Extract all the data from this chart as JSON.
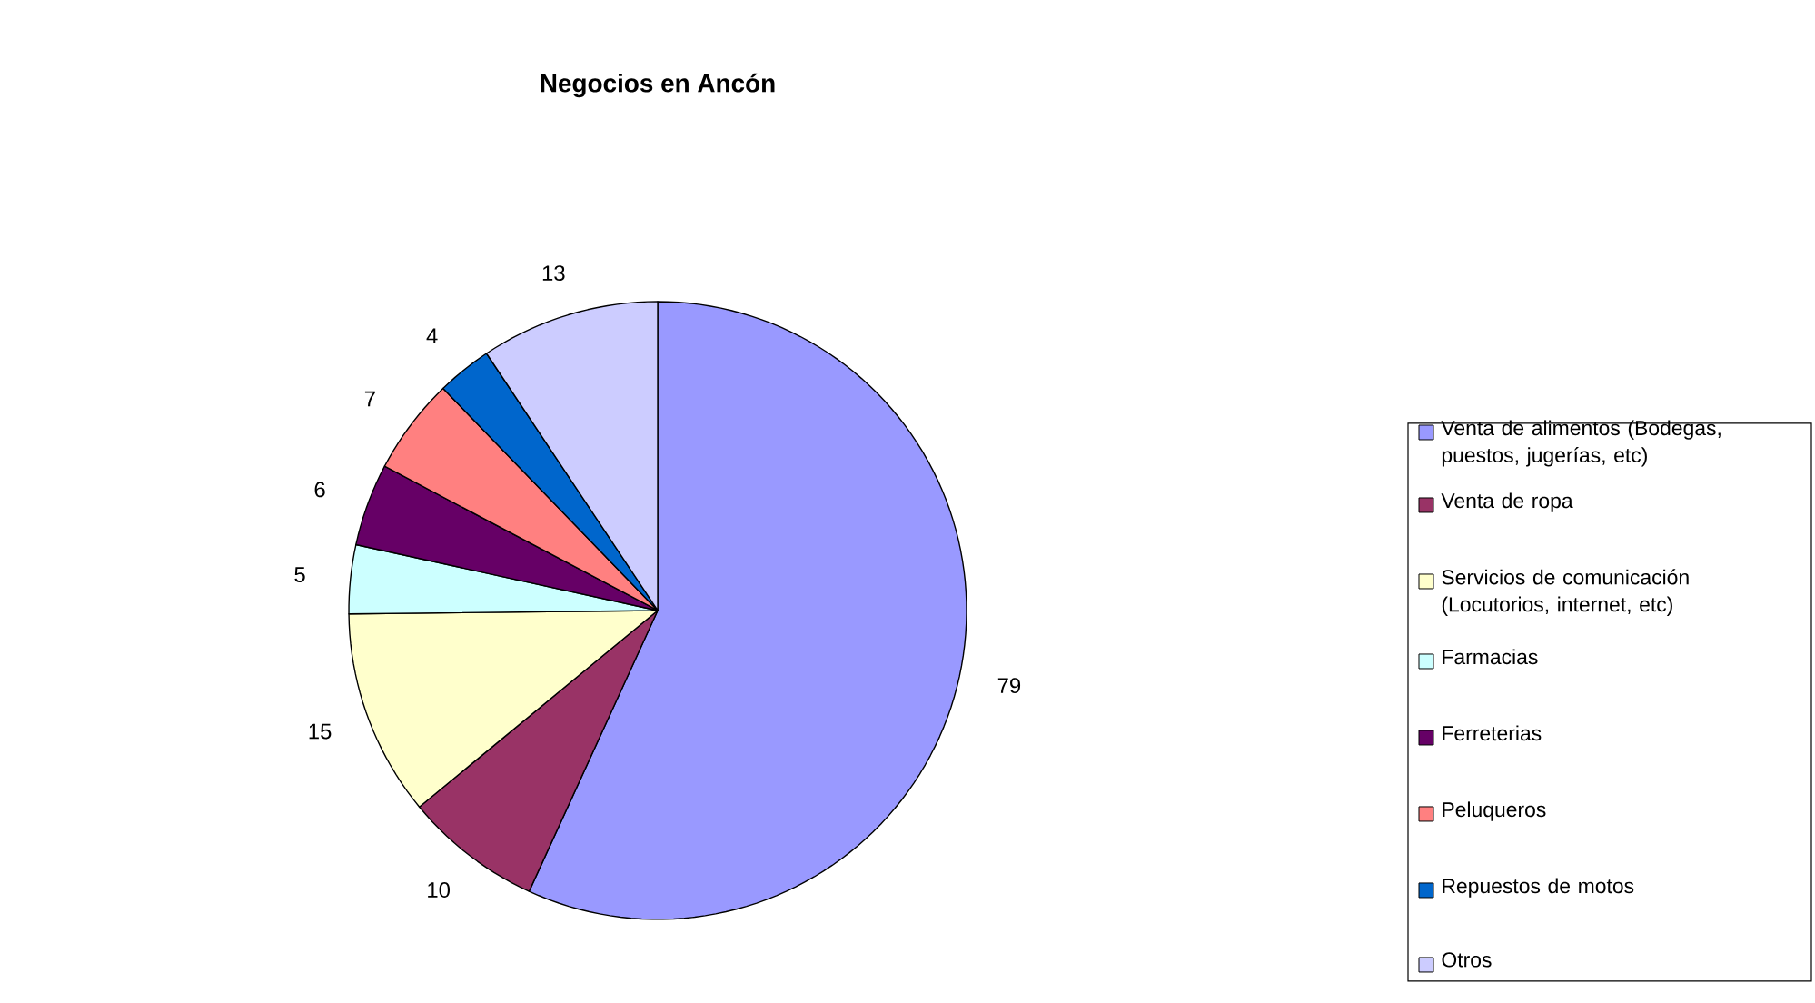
{
  "chart_data": {
    "type": "pie",
    "title": "Negocios en Ancón",
    "categories": [
      "Venta de alimentos (Bodegas, puestos, jugerías, etc)",
      "Venta de ropa",
      "Servicios de comunicación (Locutorios, internet, etc)",
      "Farmacias",
      "Ferreterias",
      "Peluqueros",
      "Repuestos de motos",
      "Otros"
    ],
    "values": [
      79,
      10,
      15,
      5,
      6,
      7,
      4,
      13
    ],
    "colors": [
      "#9999ff",
      "#993366",
      "#ffffcc",
      "#ccffff",
      "#660066",
      "#ff8080",
      "#0066cc",
      "#ccccff"
    ],
    "data_labels": true,
    "legend": "right"
  }
}
